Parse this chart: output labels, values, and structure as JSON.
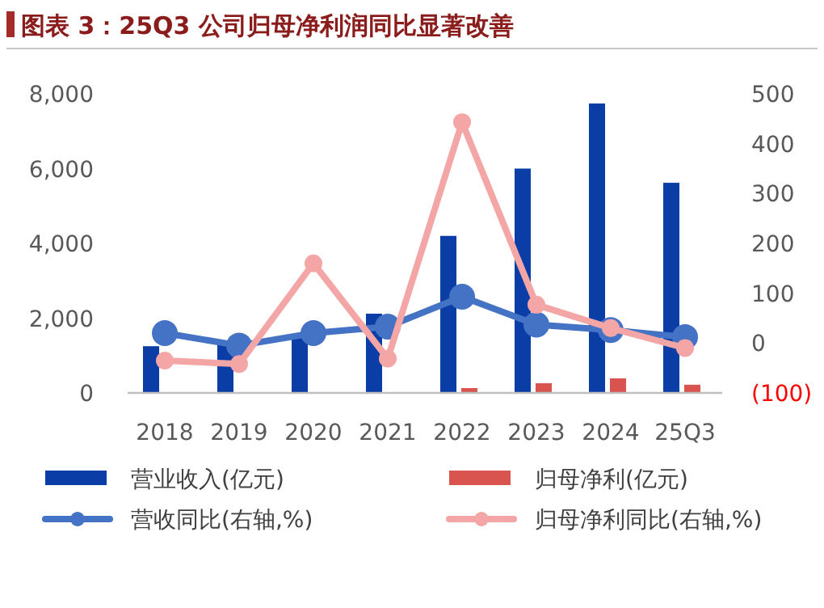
{
  "chart_data": {
    "type": "bar",
    "title": "图表 3：25Q3 公司归母净利润同比显著改善",
    "categories": [
      "2018",
      "2019",
      "2020",
      "2021",
      "2022",
      "2023",
      "2024",
      "25Q3"
    ],
    "series": [
      {
        "name": "营业收入(亿元)",
        "color": "#0a3ea6",
        "values": [
          1250,
          1300,
          1550,
          2120,
          4200,
          6000,
          7740,
          5620
        ]
      },
      {
        "name": "归母净利(亿元)",
        "color": "#d9534f",
        "values": [
          null,
          null,
          null,
          null,
          130,
          260,
          390,
          220
        ]
      },
      {
        "name": "营收同比(右轴,%)",
        "type": "line",
        "axis": "y2",
        "color": "#4472c4",
        "marker": "circle",
        "values": [
          20,
          -5,
          20,
          33,
          93,
          37,
          26,
          12
        ]
      },
      {
        "name": "归母净利同比(右轴,%)",
        "type": "line",
        "axis": "y2",
        "color": "#f4a6a6",
        "marker": "circle",
        "values": [
          -35,
          -42,
          160,
          -31,
          443,
          77,
          30,
          -10
        ]
      }
    ],
    "ylim": [
      0,
      8000
    ],
    "yticks": [
      0,
      {
        "value": 2000,
        "label": "2,000"
      },
      {
        "value": 4000,
        "label": "4,000"
      },
      {
        "value": 6000,
        "label": "6,000"
      },
      {
        "value": 8000,
        "label": "8,000"
      }
    ],
    "y2lim": [
      -100,
      500
    ],
    "y2ticks": [
      {
        "value": -100,
        "label": "(100)"
      },
      0,
      100,
      200,
      300,
      400,
      500
    ],
    "grid": false,
    "legend": "bottom"
  }
}
